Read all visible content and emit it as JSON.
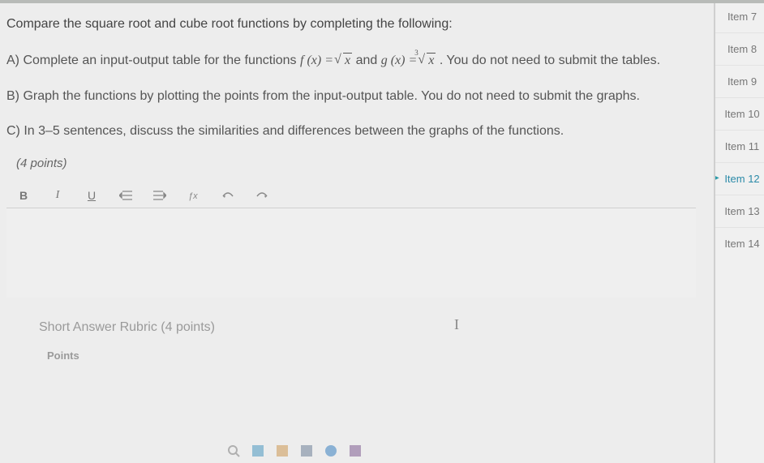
{
  "question": {
    "stem": "Compare the square root and cube root functions by completing the following:",
    "parts": {
      "a_prefix": "A) Complete an input-output table for the functions ",
      "a_fx": "f (x) = ",
      "a_mid": " and ",
      "a_gx": "g (x) = ",
      "a_suffix": ". You do not need to submit the tables.",
      "b": "B) Graph the functions by plotting the points from the input-output table. You do not need to submit the graphs.",
      "c": "C) In 3–5 sentences, discuss the similarities and differences between the graphs of the functions."
    },
    "points_label": "(4 points)"
  },
  "toolbar": {
    "bold": "B",
    "italic": "I",
    "underline": "U"
  },
  "rubric": {
    "title": "Short Answer Rubric (4 points)",
    "points_header": "Points"
  },
  "nav": {
    "items": [
      "Item 7",
      "Item 8",
      "Item 9",
      "Item 10",
      "Item 11",
      "Item 12",
      "Item 13",
      "Item 14"
    ],
    "active_index": 5
  },
  "colors": {
    "text": "#4a4a4a",
    "muted": "#9a9a9a",
    "active": "#2a8aa8",
    "border": "#cfcfcf",
    "bg": "#ededed"
  }
}
